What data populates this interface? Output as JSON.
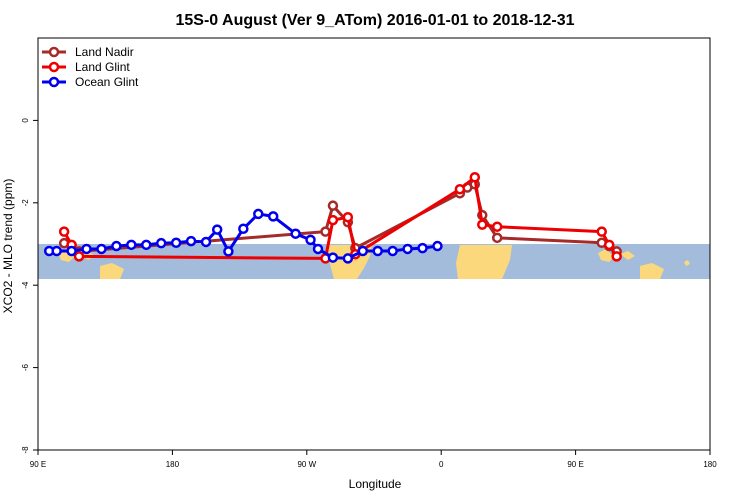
{
  "chart_data": {
    "type": "line",
    "title": "15S-0 August (Ver 9_ATom)   2016-01-01 to 2018-12-31",
    "xlabel": "Longitude",
    "ylabel": "XCO2 - MLO trend (ppm)",
    "xlim": [
      90,
      450
    ],
    "ylim": [
      -8,
      2
    ],
    "x_ticks": [
      {
        "value": 90,
        "label": "90 E"
      },
      {
        "value": 180,
        "label": "180"
      },
      {
        "value": 270,
        "label": "90 W"
      },
      {
        "value": 360,
        "label": "0"
      },
      {
        "value": 450,
        "label": "90 E"
      },
      {
        "value": 540,
        "label": "180"
      }
    ],
    "y_ticks": [
      {
        "value": 0,
        "label": "0"
      },
      {
        "value": -2,
        "label": "-2"
      },
      {
        "value": -4,
        "label": "-4"
      },
      {
        "value": -6,
        "label": "-6"
      },
      {
        "value": -8,
        "label": "-8"
      }
    ],
    "legend": "top-left",
    "grid": false,
    "background_band": {
      "ymin": -3.85,
      "ymax": -3.0,
      "ocean_color": "#a4bcdc",
      "land_color": "#fcd87c"
    },
    "series": [
      {
        "name": "Land Nadir",
        "color": "#a52a2a",
        "points": [
          [
            107.5,
            -2.98
          ],
          [
            112.5,
            -3.05
          ],
          [
            117.5,
            -3.18
          ],
          [
            282.5,
            -2.7
          ],
          [
            287.5,
            -2.07
          ],
          [
            297.5,
            -2.47
          ],
          [
            302.5,
            -3.1
          ],
          [
            372.5,
            -1.77
          ],
          [
            377.5,
            -1.63
          ],
          [
            382.5,
            -1.55
          ],
          [
            387.5,
            -2.3
          ],
          [
            397.5,
            -2.85
          ],
          [
            467.5,
            -2.97
          ],
          [
            472.5,
            -3.05
          ],
          [
            477.5,
            -3.18
          ]
        ]
      },
      {
        "name": "Land Glint",
        "color": "#ee0000",
        "points": [
          [
            107.5,
            -2.7
          ],
          [
            112.5,
            -3.02
          ],
          [
            117.5,
            -3.3
          ],
          [
            282.5,
            -3.35
          ],
          [
            287.5,
            -2.42
          ],
          [
            297.5,
            -2.35
          ],
          [
            302.5,
            -3.25
          ],
          [
            372.5,
            -1.67
          ],
          [
            382.5,
            -1.38
          ],
          [
            387.5,
            -2.53
          ],
          [
            397.5,
            -2.58
          ],
          [
            467.5,
            -2.7
          ],
          [
            472.5,
            -3.02
          ],
          [
            477.5,
            -3.3
          ]
        ]
      },
      {
        "name": "Ocean Glint",
        "color": "#0000ee",
        "points": [
          [
            97.5,
            -3.17
          ],
          [
            102.5,
            -3.17
          ],
          [
            112.5,
            -3.17
          ],
          [
            122.5,
            -3.12
          ],
          [
            132.5,
            -3.12
          ],
          [
            142.5,
            -3.05
          ],
          [
            152.5,
            -3.02
          ],
          [
            162.5,
            -3.02
          ],
          [
            172.5,
            -2.98
          ],
          [
            182.5,
            -2.97
          ],
          [
            192.5,
            -2.93
          ],
          [
            202.5,
            -2.95
          ],
          [
            210,
            -2.65
          ],
          [
            217.5,
            -3.18
          ],
          [
            227.5,
            -2.63
          ],
          [
            237.5,
            -2.27
          ],
          [
            247.5,
            -2.33
          ],
          [
            262.5,
            -2.75
          ],
          [
            272.5,
            -2.9
          ],
          [
            277.5,
            -3.12
          ],
          [
            287.5,
            -3.33
          ],
          [
            297.5,
            -3.35
          ],
          [
            307.5,
            -3.17
          ],
          [
            317.5,
            -3.17
          ],
          [
            327.5,
            -3.17
          ],
          [
            337.5,
            -3.12
          ],
          [
            347.5,
            -3.1
          ],
          [
            357.5,
            -3.05
          ]
        ]
      }
    ]
  }
}
